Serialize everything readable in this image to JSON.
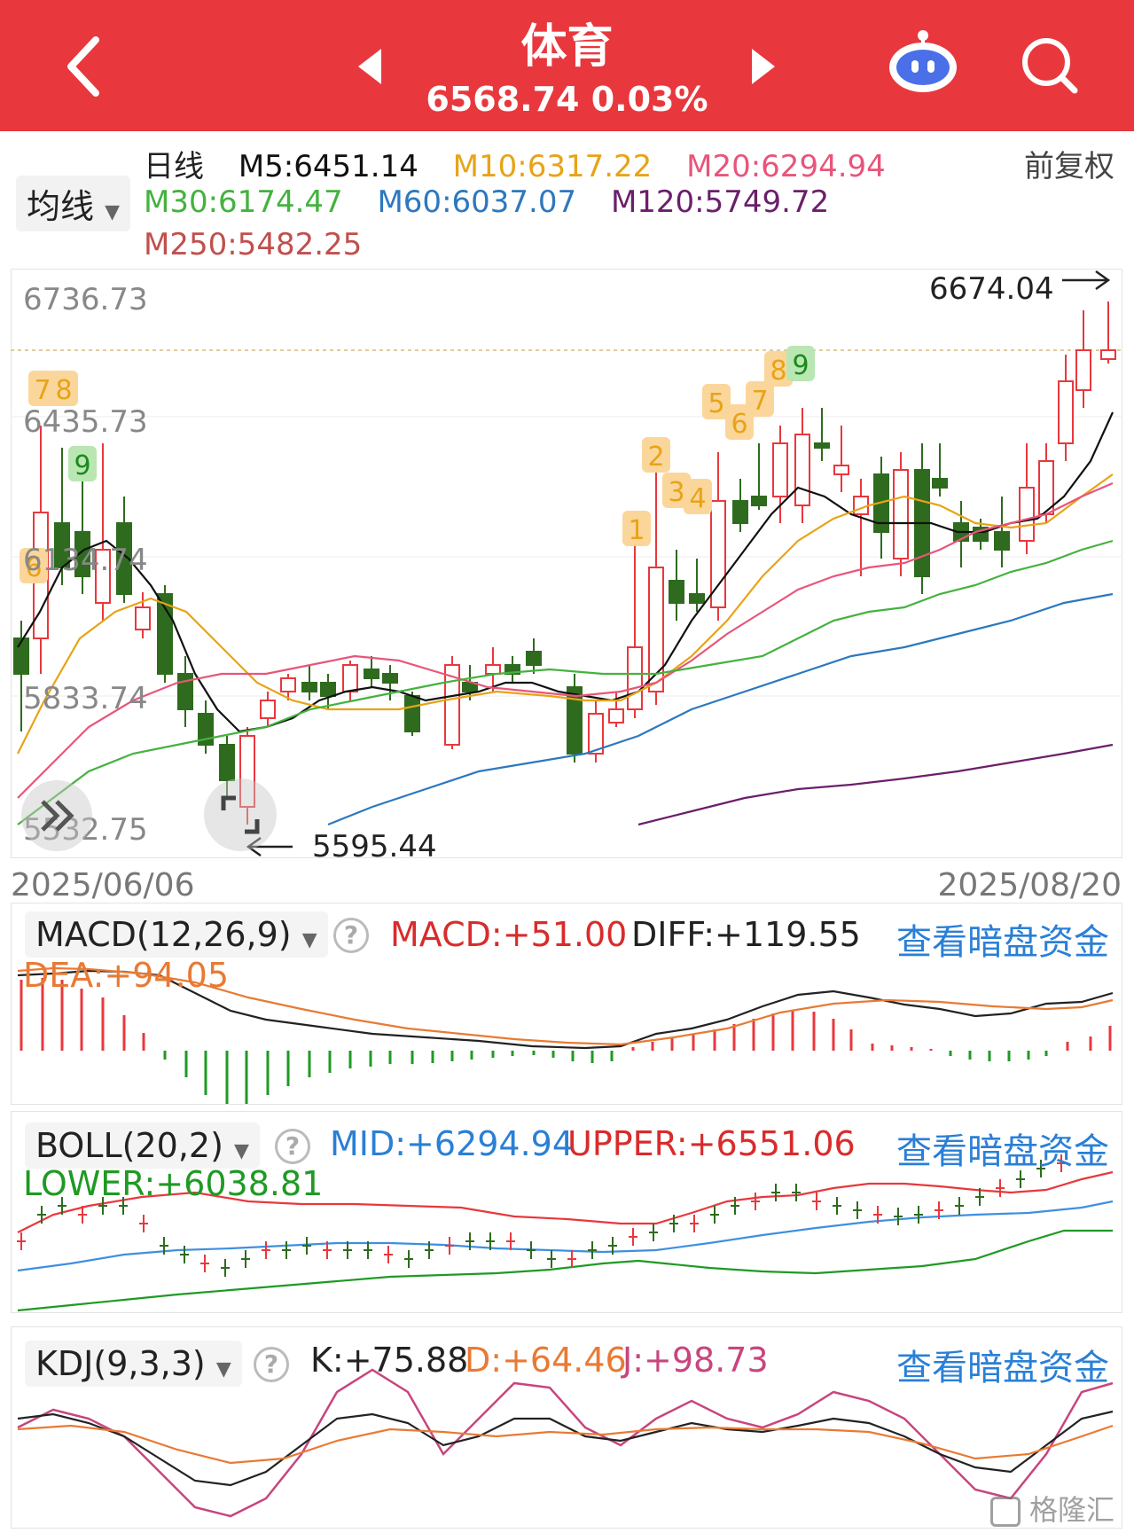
{
  "header": {
    "title": "体育",
    "price": "6568.74",
    "change_pct": "0.03%",
    "colors": {
      "bg": "#e8383d",
      "text": "#ffffff"
    }
  },
  "ma_info": {
    "period": "日线",
    "adjust": "前复权",
    "selector": "均线",
    "ma": [
      {
        "key": "ma5",
        "label": "M5:6451.14",
        "color": "#111111"
      },
      {
        "key": "ma10",
        "label": "M10:6317.22",
        "color": "#e8a317"
      },
      {
        "key": "ma20",
        "label": "M20:6294.94",
        "color": "#e8557a"
      },
      {
        "key": "ma30",
        "label": "M30:6174.47",
        "color": "#44b23e"
      },
      {
        "key": "ma60",
        "label": "M60:6037.07",
        "color": "#2d78bf"
      },
      {
        "key": "ma120",
        "label": "M120:5749.72",
        "color": "#6b1f6b"
      },
      {
        "key": "ma250",
        "label": "M250:5482.25",
        "color": "#c0504d"
      }
    ]
  },
  "main_chart": {
    "y_labels": [
      "6736.73",
      "6435.73",
      "6134.74",
      "5833.74",
      "5532.75"
    ],
    "high_label": "6674.04",
    "low_label": "5595.44",
    "start_date": "2025/06/06",
    "end_date": "2025/08/20",
    "up_color": "#e8383d",
    "down_color": "#2e6b1e",
    "markers": [
      {
        "text": "6",
        "type": "orange"
      },
      {
        "text": "7",
        "type": "orange"
      },
      {
        "text": "8",
        "type": "orange"
      },
      {
        "text": "9",
        "type": "green"
      },
      {
        "text": "1",
        "type": "orange"
      },
      {
        "text": "2",
        "type": "orange"
      },
      {
        "text": "3",
        "type": "orange"
      },
      {
        "text": "4",
        "type": "orange"
      },
      {
        "text": "5",
        "type": "orange"
      },
      {
        "text": "6",
        "type": "orange"
      },
      {
        "text": "7",
        "type": "orange"
      },
      {
        "text": "8",
        "type": "orange"
      },
      {
        "text": "9",
        "type": "green"
      }
    ]
  },
  "macd": {
    "selector": "MACD(12,26,9)",
    "macd": "MACD:+51.00",
    "diff": "DIFF:+119.55",
    "dea": "DEA:+94.05",
    "link": "查看暗盘资金"
  },
  "boll": {
    "selector": "BOLL(20,2)",
    "mid": "MID:+6294.94",
    "upper": "UPPER:+6551.06",
    "lower": "LOWER:+6038.81",
    "link": "查看暗盘资金"
  },
  "kdj": {
    "selector": "KDJ(9,3,3)",
    "k": "K:+75.88",
    "d": "D:+64.46",
    "j": "J:+98.73",
    "link": "查看暗盘资金"
  },
  "watermark": "格隆汇"
}
